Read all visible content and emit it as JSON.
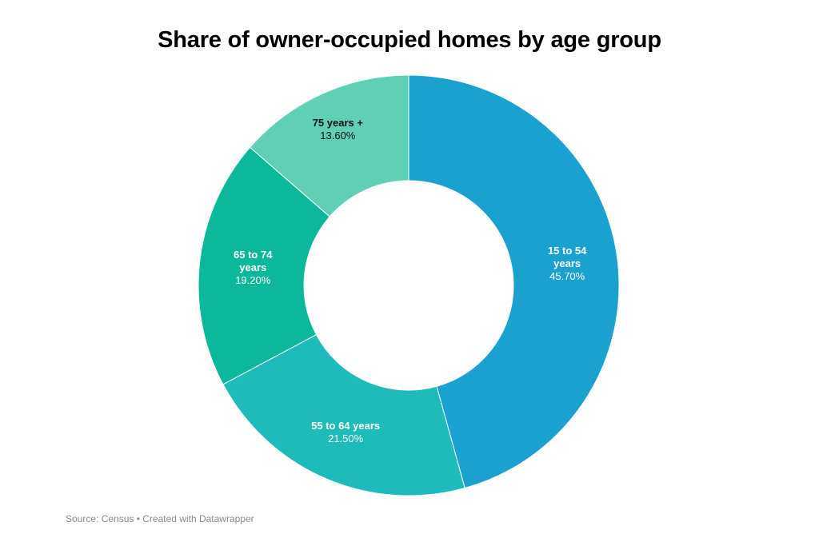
{
  "title": "Share of owner-occupied homes by age group",
  "footer": {
    "source": "Source: Census • Created with Datawrapper"
  },
  "chart_data": {
    "type": "pie",
    "donut": true,
    "title": "Share of owner-occupied homes by age group",
    "slices": [
      {
        "label": "15 to 54 years",
        "label_lines": [
          "15 to 54",
          "years"
        ],
        "value": 45.7,
        "value_label": "45.70%",
        "color": "#1ba1cf",
        "text_color": "#ffffff"
      },
      {
        "label": "55 to 64 years",
        "label_lines": [
          "55 to 64 years"
        ],
        "value": 21.5,
        "value_label": "21.50%",
        "color": "#1fbbbb",
        "text_color": "#ffffff"
      },
      {
        "label": "65 to 74 years",
        "label_lines": [
          "65 to 74",
          "years"
        ],
        "value": 19.2,
        "value_label": "19.20%",
        "color": "#0bb89a",
        "text_color": "#ffffff"
      },
      {
        "label": "75 years +",
        "label_lines": [
          "75 years +"
        ],
        "value": 13.6,
        "value_label": "13.60%",
        "color": "#5fd0b5",
        "text_color": "#111111"
      }
    ],
    "start_angle": "12 o'clock",
    "direction": "clockwise",
    "legend": "none"
  }
}
